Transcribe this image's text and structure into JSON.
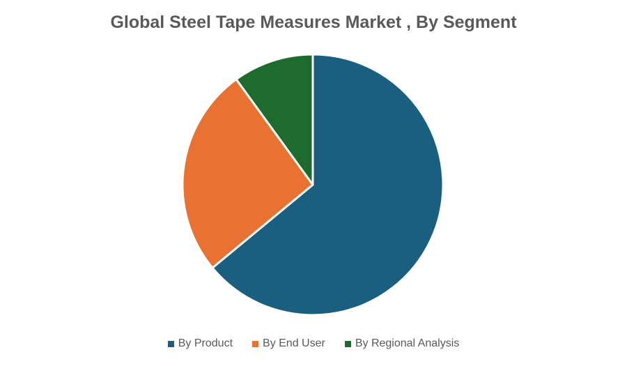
{
  "chart_data": {
    "type": "pie",
    "title": "Global Steel Tape Measures Market , By Segment",
    "categories": [
      "By Product",
      "By End User",
      "By Regional Analysis"
    ],
    "values": [
      64,
      26,
      10
    ],
    "colors": [
      "#1a5f80",
      "#e97132",
      "#1e6b2e"
    ],
    "start_angle_deg": 0,
    "direction": "clockwise",
    "legend_position": "bottom"
  }
}
